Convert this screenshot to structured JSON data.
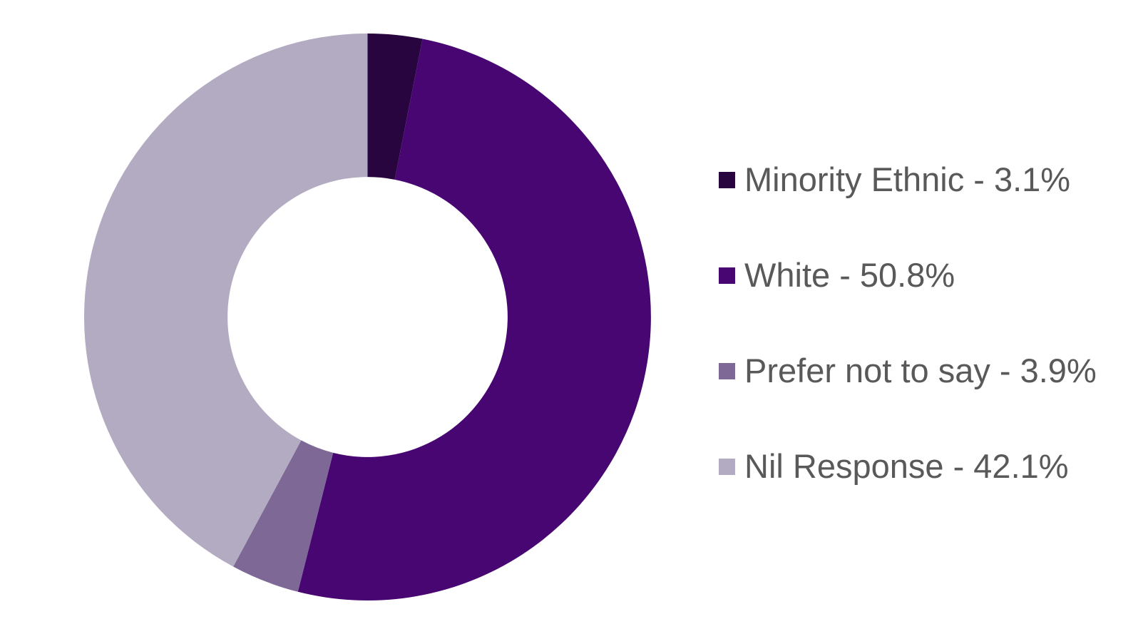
{
  "chart_data": {
    "type": "pie",
    "subtype": "donut",
    "title": "",
    "categories": [
      "Minority Ethnic",
      "White",
      "Prefer not to say",
      "Nil Response"
    ],
    "values": [
      3.1,
      50.8,
      3.9,
      42.1
    ],
    "unit": "%",
    "colors": [
      "#28053E",
      "#470671",
      "#7D6896",
      "#B3ABC1"
    ],
    "start_angle_deg": 0,
    "direction": "clockwise",
    "donut_hole_ratio": 0.494,
    "grid": false,
    "legend_position": "right",
    "background_color": "#ffffff"
  },
  "legend": {
    "text_color": "#595959",
    "items": [
      {
        "label": "Minority Ethnic - 3.1%",
        "color": "#28053E"
      },
      {
        "label": "White - 50.8%",
        "color": "#470671"
      },
      {
        "label": "Prefer not to say - 3.9%",
        "color": "#7D6896"
      },
      {
        "label": "Nil Response - 42.1%",
        "color": "#B3ABC1"
      }
    ]
  }
}
